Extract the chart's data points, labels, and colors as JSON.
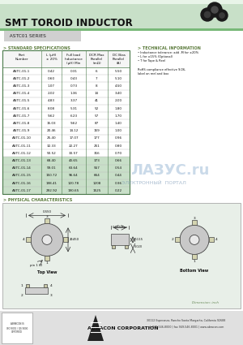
{
  "title": "SMT TOROID INDUCTOR",
  "subtitle": "  ASTC01 SERIES",
  "section1_label": "> STANDARD SPECIFICATIONS",
  "section2_label": "> PHYSICAL CHARACTERISTICS",
  "tech_info_label": "> TECHNICAL INFORMATION",
  "tech_info_lines": [
    "• Inductance tolerance: add -M for ±20%",
    "• L for ±15% (Optional)",
    "• T for Tape & Reel",
    "",
    "RoHS compliance effective 9/26,",
    "label on reel and box"
  ],
  "col_headers_line1": [
    "Part",
    "L (µH)",
    "Full load",
    "DCR Max",
    "DC Bias"
  ],
  "col_headers_line2": [
    "Number",
    "± 20%",
    "Inductance",
    "Parallel",
    "Parallel"
  ],
  "col_headers_line3": [
    "",
    "",
    "(µH) Min",
    "(mΩ)",
    "(A)"
  ],
  "table_data": [
    [
      "ASTC-01-1",
      "0.42",
      "0.31",
      "6",
      "5.50"
    ],
    [
      "ASTC-01-2",
      "0.60",
      "0.43",
      "7",
      "5.10"
    ],
    [
      "ASTC-01-3",
      "1.07",
      "0.73",
      "8",
      "4.50"
    ],
    [
      "ASTC-01-4",
      "2.02",
      "1.36",
      "14",
      "3.40"
    ],
    [
      "ASTC-01-5",
      "4.83",
      "3.37",
      "41",
      "2.00"
    ],
    [
      "ASTC-01-6",
      "8.08",
      "5.31",
      "52",
      "1.80"
    ],
    [
      "ASTC-01-7",
      "9.62",
      "6.23",
      "57",
      "1.70"
    ],
    [
      "ASTC-01-8",
      "15.03",
      "9.62",
      "87",
      "1.40"
    ],
    [
      "ASTC-01-9",
      "20.46",
      "14.12",
      "159",
      "1.00"
    ],
    [
      "ASTC-01-10",
      "25.40",
      "17.07",
      "177",
      "0.96"
    ],
    [
      "ASTC-01-11",
      "32.33",
      "22.27",
      "251",
      "0.80"
    ],
    [
      "ASTC-01-12",
      "50.52",
      "33.57",
      "316",
      "0.70"
    ],
    [
      "ASTC-01-13",
      "68.40",
      "43.65",
      "373",
      "0.66"
    ],
    [
      "ASTC-01-14",
      "99.01",
      "63.64",
      "557",
      "0.54"
    ],
    [
      "ASTC-01-15",
      "150.72",
      "96.64",
      "664",
      "0.44"
    ],
    [
      "ASTC-01-16",
      "198.41",
      "120.78",
      "1208",
      "0.36"
    ],
    [
      "ASTC-01-17",
      "292.92",
      "190.65",
      "1525",
      "0.22"
    ]
  ],
  "highlighted_rows": [
    12,
    13,
    14,
    15,
    16
  ],
  "table_border_color": "#4a7a4a",
  "row_bg_normal": "#ffffff",
  "row_bg_highlight": "#c8dfc8",
  "title_bg_top": "#d8ead8",
  "title_bg_bottom": "#a8cca8",
  "subtitle_bg": "#d0d0d0",
  "section_color": "#5a7a3a",
  "tech_color": "#5a7a3a",
  "phys_bg": "#e8efe8",
  "company": "ABRACON CORPORATION",
  "footer_addr": "30112 Esperanza, Rancho Santa Margarita, California 92688",
  "footer_phone": "ph 949-546-8000 | fax 949-546-8001 | www.abracon.com",
  "background_color": "#ffffff",
  "green_line_color": "#78b878",
  "watermark_text": "ЛАЗУС.ru",
  "watermark_sub": "ЭЛЕКТРОННЫЙ  ПОРТАЛ"
}
